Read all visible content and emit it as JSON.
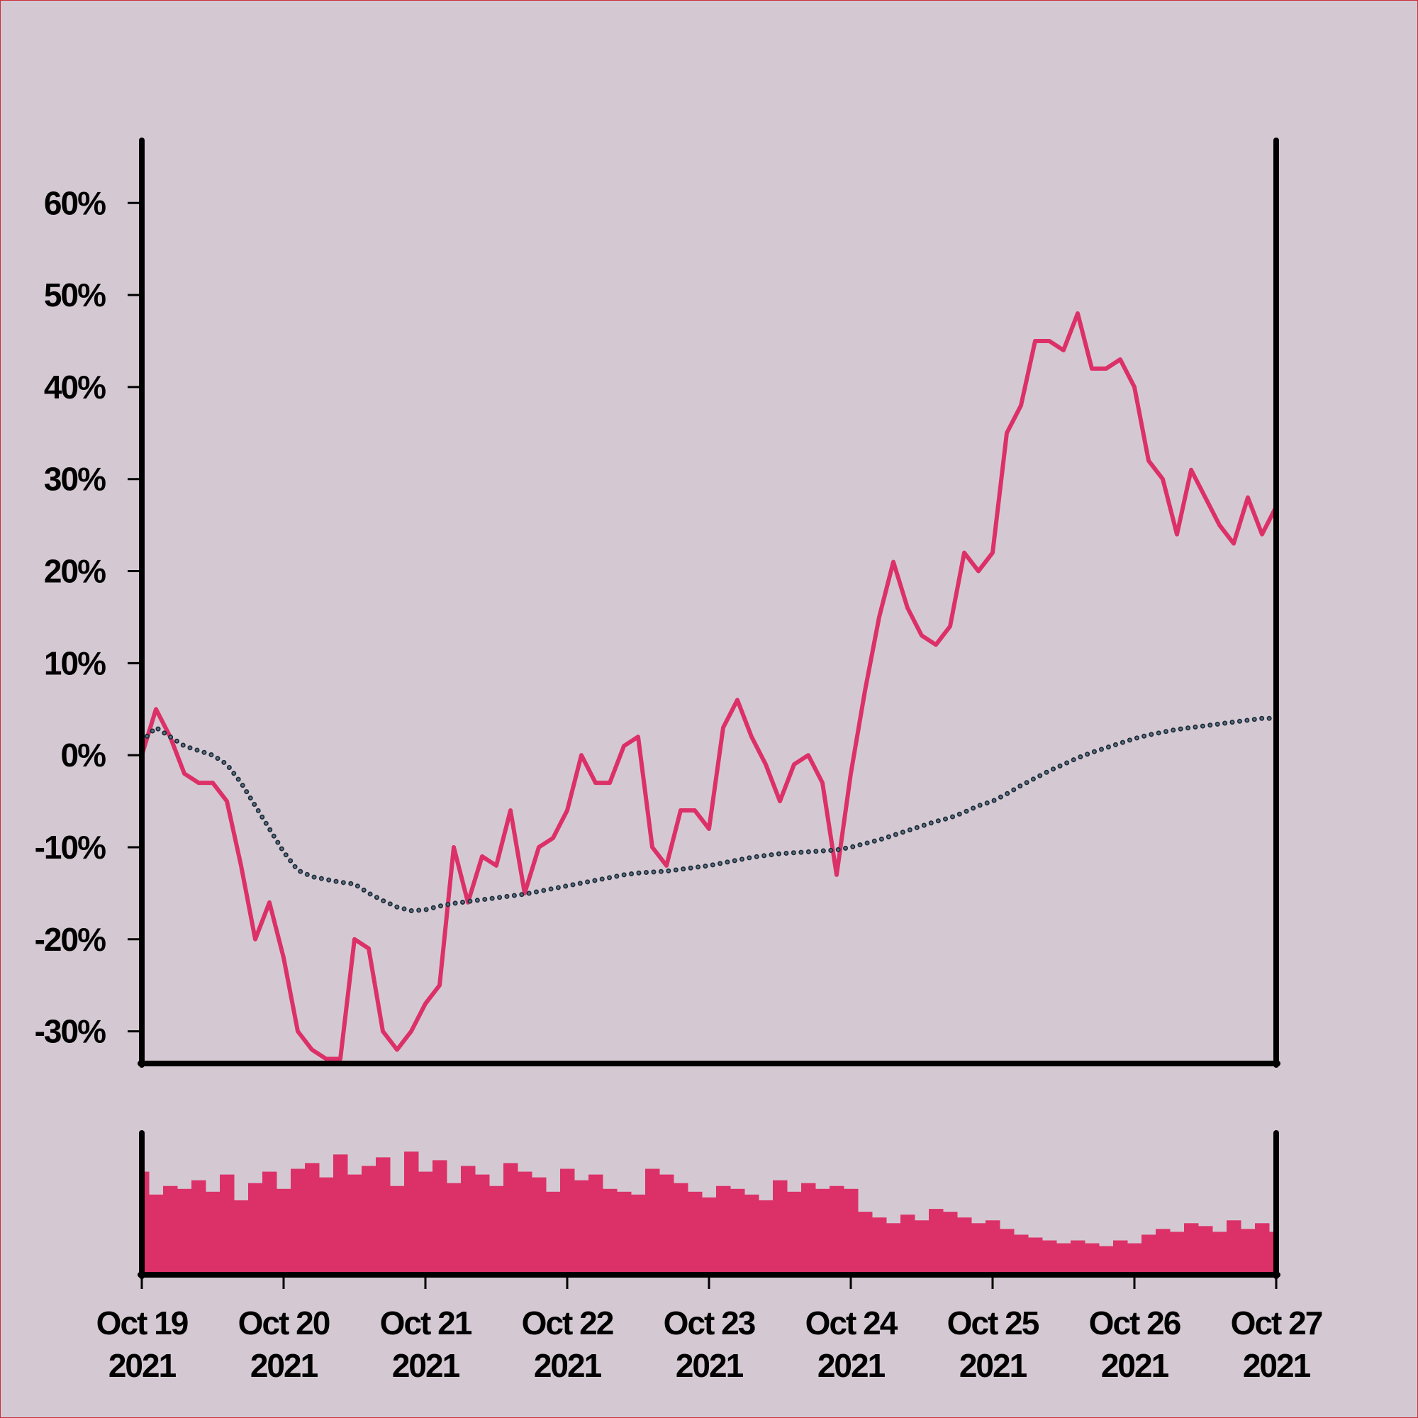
{
  "chart_data": [
    {
      "type": "line",
      "xlim": [
        0,
        8
      ],
      "ylim": [
        -33.5,
        66.8
      ],
      "yticks": [
        {
          "value": -30,
          "label": "-30%"
        },
        {
          "value": -20,
          "label": "-20%"
        },
        {
          "value": -10,
          "label": "-10%"
        },
        {
          "value": 0,
          "label": "0%"
        },
        {
          "value": 10,
          "label": "10%"
        },
        {
          "value": 20,
          "label": "20%"
        },
        {
          "value": 30,
          "label": "30%"
        },
        {
          "value": 40,
          "label": "40%"
        },
        {
          "value": 50,
          "label": "50%"
        },
        {
          "value": 60,
          "label": "60%"
        }
      ],
      "x": [
        0,
        0.1,
        0.2,
        0.3,
        0.4,
        0.5,
        0.6,
        0.7,
        0.8,
        0.9,
        1,
        1.1,
        1.2,
        1.3,
        1.4,
        1.5,
        1.6,
        1.7,
        1.8,
        1.9,
        2,
        2.1,
        2.2,
        2.3,
        2.4,
        2.5,
        2.6,
        2.7,
        2.8,
        2.9,
        3,
        3.1,
        3.2,
        3.3,
        3.4,
        3.5,
        3.6,
        3.7,
        3.8,
        3.9,
        4,
        4.1,
        4.2,
        4.3,
        4.4,
        4.5,
        4.6,
        4.7,
        4.8,
        4.9,
        5,
        5.1,
        5.2,
        5.3,
        5.4,
        5.5,
        5.6,
        5.7,
        5.8,
        5.9,
        6,
        6.1,
        6.2,
        6.3,
        6.4,
        6.5,
        6.6,
        6.7,
        6.8,
        6.9,
        7,
        7.1,
        7.2,
        7.3,
        7.4,
        7.5,
        7.6,
        7.7,
        7.8,
        7.9,
        8
      ],
      "series": [
        {
          "color": "#dc3168",
          "style": "solid",
          "values": [
            0,
            5,
            2,
            -2,
            -3,
            -3,
            -5,
            -12,
            -20,
            -16,
            -22,
            -30,
            -32,
            -33,
            -33,
            -20,
            -21,
            -30,
            -32,
            -30,
            -27,
            -25,
            -10,
            -16,
            -11,
            -12,
            -6,
            -15,
            -10,
            -9,
            -6,
            0,
            -3,
            -3,
            1,
            2,
            -10,
            -12,
            -6,
            -6,
            -8,
            3,
            6,
            2,
            -1,
            -5,
            -1,
            0,
            -3,
            -13,
            -2,
            7,
            15,
            21,
            16,
            13,
            12,
            14,
            22,
            20,
            22,
            35,
            38,
            45,
            45,
            44,
            48,
            42,
            42,
            43,
            40,
            32,
            30,
            24,
            31,
            28,
            25,
            23,
            28,
            24,
            27
          ]
        },
        {
          "color": "#1c2b3a",
          "style": "dotted",
          "values": [
            1.5,
            3,
            2,
            1,
            0.5,
            0,
            -1,
            -3,
            -5.5,
            -8,
            -10.5,
            -12.5,
            -13.2,
            -13.5,
            -13.8,
            -14,
            -15,
            -15.8,
            -16.5,
            -16.9,
            -16.8,
            -16.4,
            -16.1,
            -15.9,
            -15.7,
            -15.5,
            -15.3,
            -15.1,
            -14.8,
            -14.5,
            -14.2,
            -13.9,
            -13.6,
            -13.3,
            -13,
            -12.8,
            -12.7,
            -12.6,
            -12.4,
            -12.2,
            -12,
            -11.7,
            -11.4,
            -11.1,
            -10.9,
            -10.7,
            -10.6,
            -10.5,
            -10.4,
            -10.3,
            -10,
            -9.6,
            -9.2,
            -8.7,
            -8.2,
            -7.7,
            -7.2,
            -6.8,
            -6.2,
            -5.5,
            -5,
            -4.2,
            -3.3,
            -2.5,
            -1.7,
            -1,
            -0.3,
            0.3,
            0.8,
            1.3,
            1.8,
            2.2,
            2.5,
            2.8,
            3,
            3.2,
            3.4,
            3.6,
            3.8,
            4,
            4
          ]
        }
      ]
    },
    {
      "type": "bar",
      "color": "#dc3168",
      "xlim": [
        0,
        8
      ],
      "ylim": [
        0,
        100
      ],
      "xticks": [
        {
          "value": 0,
          "label": [
            "Oct 19",
            "2021"
          ]
        },
        {
          "value": 1,
          "label": [
            "Oct 20",
            "2021"
          ]
        },
        {
          "value": 2,
          "label": [
            "Oct 21",
            "2021"
          ]
        },
        {
          "value": 3,
          "label": [
            "Oct 22",
            "2021"
          ]
        },
        {
          "value": 4,
          "label": [
            "Oct 23",
            "2021"
          ]
        },
        {
          "value": 5,
          "label": [
            "Oct 24",
            "2021"
          ]
        },
        {
          "value": 6,
          "label": [
            "Oct 25",
            "2021"
          ]
        },
        {
          "value": 7,
          "label": [
            "Oct 26",
            "2021"
          ]
        },
        {
          "value": 8,
          "label": [
            "Oct 27",
            "2021"
          ]
        }
      ],
      "x": [
        0,
        0.1,
        0.2,
        0.3,
        0.4,
        0.5,
        0.6,
        0.7,
        0.8,
        0.9,
        1,
        1.1,
        1.2,
        1.3,
        1.4,
        1.5,
        1.6,
        1.7,
        1.8,
        1.9,
        2,
        2.1,
        2.2,
        2.3,
        2.4,
        2.5,
        2.6,
        2.7,
        2.8,
        2.9,
        3,
        3.1,
        3.2,
        3.3,
        3.4,
        3.5,
        3.6,
        3.7,
        3.8,
        3.9,
        4,
        4.1,
        4.2,
        4.3,
        4.4,
        4.5,
        4.6,
        4.7,
        4.8,
        4.9,
        5,
        5.1,
        5.2,
        5.3,
        5.4,
        5.5,
        5.6,
        5.7,
        5.8,
        5.9,
        6,
        6.1,
        6.2,
        6.3,
        6.4,
        6.5,
        6.6,
        6.7,
        6.8,
        6.9,
        7,
        7.1,
        7.2,
        7.3,
        7.4,
        7.5,
        7.6,
        7.7,
        7.8,
        7.9,
        8
      ],
      "values": [
        72,
        56,
        62,
        60,
        66,
        58,
        70,
        52,
        64,
        72,
        60,
        74,
        78,
        68,
        84,
        70,
        76,
        82,
        62,
        86,
        72,
        80,
        64,
        76,
        70,
        62,
        78,
        72,
        68,
        58,
        74,
        66,
        70,
        60,
        58,
        56,
        74,
        70,
        64,
        58,
        54,
        62,
        60,
        56,
        52,
        66,
        58,
        64,
        60,
        62,
        60,
        44,
        40,
        36,
        42,
        38,
        46,
        44,
        40,
        36,
        38,
        32,
        28,
        26,
        24,
        22,
        24,
        22,
        20,
        24,
        22,
        28,
        32,
        30,
        36,
        34,
        30,
        38,
        32,
        36,
        30
      ]
    }
  ]
}
